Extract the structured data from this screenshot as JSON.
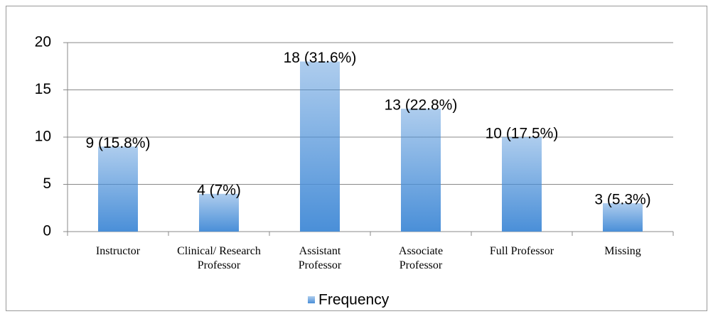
{
  "chart_data": {
    "type": "bar",
    "categories": [
      "Instructor",
      "Clinical/ Research Professor",
      "Assistant Professor",
      "Associate Professor",
      "Full Professor",
      "Missing"
    ],
    "values": [
      9,
      4,
      18,
      13,
      10,
      3
    ],
    "value_labels": [
      "9 (15.8%)",
      "4 (7%)",
      "18 (31.6%)",
      "13 (22.8%)",
      "10 (17.5%)",
      "3 (5.3%)"
    ],
    "series_name": "Frequency",
    "color": "#4a8fd8",
    "ylim": [
      0,
      20
    ],
    "yticks": [
      0,
      5,
      10,
      15,
      20
    ],
    "grid": true,
    "legend": "bottom"
  }
}
